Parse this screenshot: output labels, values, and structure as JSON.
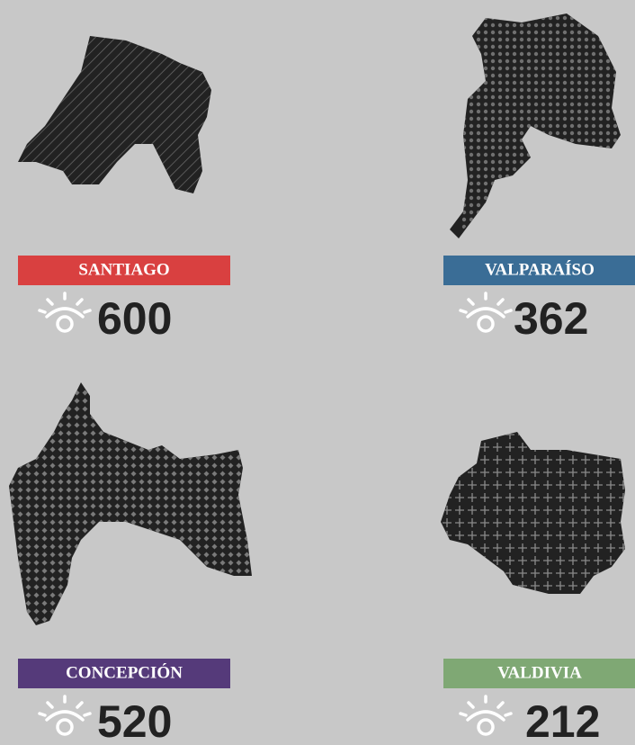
{
  "regions": [
    {
      "name": "SANTIAGO",
      "count": "600",
      "color": "#d94040"
    },
    {
      "name": "VALPARAÍSO",
      "count": "362",
      "color": "#3a6d96"
    },
    {
      "name": "CONCEPCIÓN",
      "count": "520",
      "color": "#553a7a"
    },
    {
      "name": "VALDIVIA",
      "count": "212",
      "color": "#7fa874"
    }
  ]
}
